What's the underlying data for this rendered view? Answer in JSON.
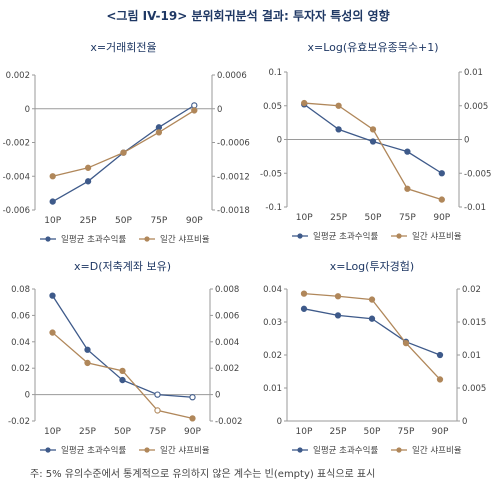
{
  "figure": {
    "title": "<그림 IV-19> 분위회귀분석 결과: 투자자 특성의 영향",
    "footnote": "주: 5% 유의수준에서 통계적으로 유의하지 않은 계수는 빈(empty) 표식으로 표시"
  },
  "colors": {
    "series1": "#3e5a8a",
    "series2": "#b0875a",
    "title": "#1f3864"
  },
  "chart_data": [
    {
      "type": "line",
      "title": "x=거래회전율",
      "categories": [
        "10P",
        "25P",
        "50P",
        "75P",
        "90P"
      ],
      "series": [
        {
          "name": "일평균 초과수익률",
          "axis": "left",
          "values": [
            -0.0055,
            -0.0043,
            -0.0026,
            -0.0011,
            0.0002
          ],
          "markers": [
            "filled",
            "filled",
            "filled",
            "filled",
            "empty"
          ]
        },
        {
          "name": "일간 샤프비율",
          "axis": "right",
          "values": [
            -0.0012,
            -0.00105,
            -0.00078,
            -0.00042,
            -3e-05
          ],
          "markers": [
            "filled",
            "filled",
            "filled",
            "filled",
            "filled"
          ]
        }
      ],
      "ylim_left": [
        -0.006,
        0.002
      ],
      "yticks_left": [
        "0.002",
        "0",
        "-0.002",
        "-0.004",
        "-0.006"
      ],
      "ylim_right": [
        -0.0018,
        0.0006
      ],
      "yticks_right": [
        "0.0006",
        "0",
        "-0.0006",
        "-0.0012",
        "-0.0018"
      ],
      "grid": false,
      "legend": "bottom"
    },
    {
      "type": "line",
      "title": "x=Log(유효보유종목수+1)",
      "categories": [
        "10P",
        "25P",
        "50P",
        "75P",
        "90P"
      ],
      "series": [
        {
          "name": "일평균 초과수익률",
          "axis": "left",
          "values": [
            0.052,
            0.015,
            -0.003,
            -0.018,
            -0.05
          ],
          "markers": [
            "filled",
            "filled",
            "filled",
            "filled",
            "filled"
          ]
        },
        {
          "name": "일간 샤프비율",
          "axis": "right",
          "values": [
            0.0054,
            0.005,
            0.0015,
            -0.0073,
            -0.0089
          ],
          "markers": [
            "filled",
            "filled",
            "filled",
            "filled",
            "filled"
          ]
        }
      ],
      "ylim_left": [
        -0.1,
        0.1
      ],
      "yticks_left": [
        "0.1",
        "0.05",
        "0",
        "-0.05",
        "-0.1"
      ],
      "ylim_right": [
        -0.01,
        0.01
      ],
      "yticks_right": [
        "0.01",
        "0.005",
        "0",
        "-0.005",
        "-0.01"
      ],
      "grid": false,
      "legend": "bottom"
    },
    {
      "type": "line",
      "title": "x=D(저축계좌 보유)",
      "categories": [
        "10P",
        "25P",
        "50P",
        "75P",
        "90P"
      ],
      "series": [
        {
          "name": "일평균 초과수익률",
          "axis": "left",
          "values": [
            0.075,
            0.034,
            0.011,
            0.0,
            -0.002
          ],
          "markers": [
            "filled",
            "filled",
            "filled",
            "empty",
            "empty"
          ]
        },
        {
          "name": "일간 샤프비율",
          "axis": "right",
          "values": [
            0.0047,
            0.0024,
            0.0018,
            -0.0012,
            -0.0018
          ],
          "markers": [
            "filled",
            "filled",
            "filled",
            "empty",
            "filled"
          ]
        }
      ],
      "ylim_left": [
        -0.02,
        0.08
      ],
      "yticks_left": [
        "0.08",
        "0.06",
        "0.04",
        "0.02",
        "0",
        "-0.02"
      ],
      "ylim_right": [
        -0.002,
        0.008
      ],
      "yticks_right": [
        "0.008",
        "0.006",
        "0.004",
        "0.002",
        "0",
        "-0.002"
      ],
      "grid": false,
      "legend": "bottom"
    },
    {
      "type": "line",
      "title": "x=Log(투자경험)",
      "categories": [
        "10P",
        "25P",
        "50P",
        "75P",
        "90P"
      ],
      "series": [
        {
          "name": "일평균 초과수익률",
          "axis": "left",
          "values": [
            0.034,
            0.032,
            0.031,
            0.024,
            0.02
          ],
          "markers": [
            "filled",
            "filled",
            "filled",
            "filled",
            "filled"
          ]
        },
        {
          "name": "일간 샤프비율",
          "axis": "right",
          "values": [
            0.0193,
            0.0189,
            0.0184,
            0.0118,
            0.0063
          ],
          "markers": [
            "filled",
            "filled",
            "filled",
            "filled",
            "filled"
          ]
        }
      ],
      "ylim_left": [
        0,
        0.04
      ],
      "yticks_left": [
        "0.04",
        "0.03",
        "0.02",
        "0.01",
        "0"
      ],
      "ylim_right": [
        0,
        0.02
      ],
      "yticks_right": [
        "0.02",
        "0.015",
        "0.01",
        "0.005",
        "0"
      ],
      "grid": false,
      "legend": "bottom"
    }
  ]
}
